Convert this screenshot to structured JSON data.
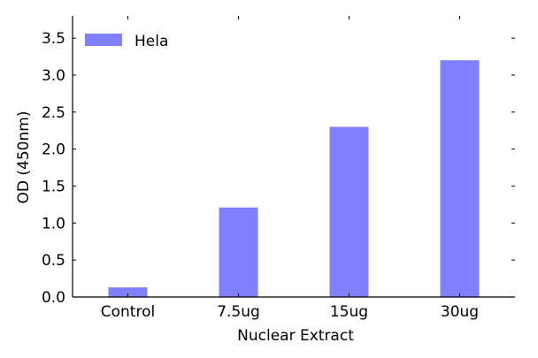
{
  "chart_data": {
    "type": "bar",
    "title": "",
    "xlabel": "Nuclear Extract",
    "ylabel": "OD (450nm)",
    "categories": [
      "Control",
      "7.5ug",
      "15ug",
      "30ug"
    ],
    "series": [
      {
        "name": "Hela",
        "color": "#8080ff",
        "values": [
          0.13,
          1.21,
          2.3,
          3.2
        ]
      }
    ],
    "ylim": [
      0,
      3.8
    ],
    "yticks": [
      0.0,
      0.5,
      1.0,
      1.5,
      2.0,
      2.5,
      3.0,
      3.5
    ],
    "ytick_labels": [
      "0.0",
      "0.5",
      "1.0",
      "1.5",
      "2.0",
      "2.5",
      "3.0",
      "3.5"
    ],
    "grid": false,
    "legend_position": "top-left"
  }
}
